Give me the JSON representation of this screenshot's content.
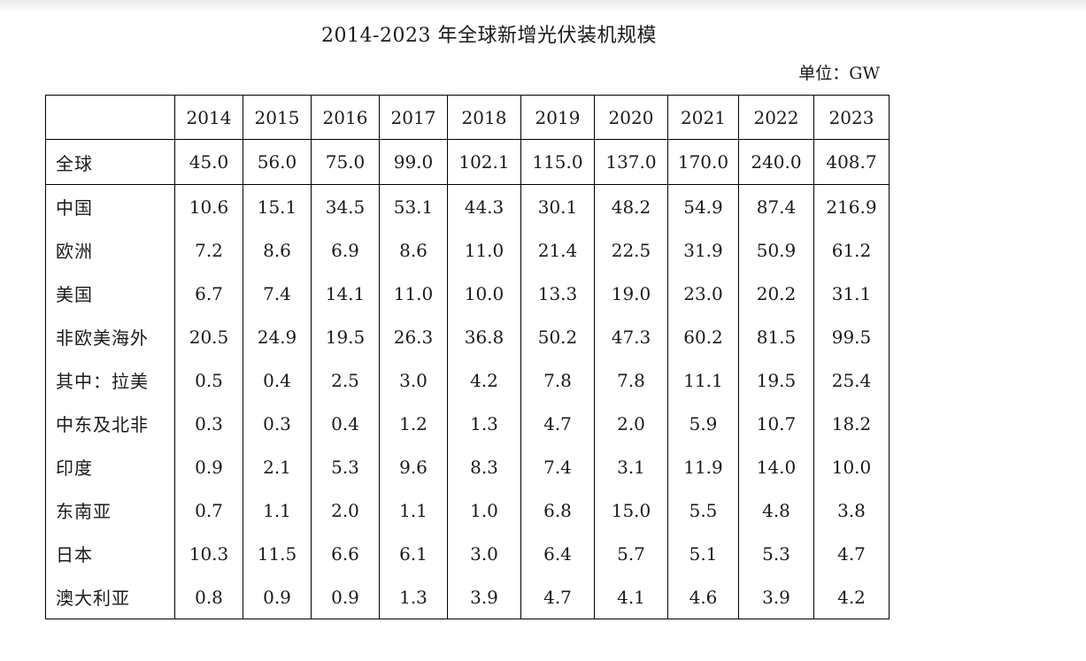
{
  "title": "2014-2023 年全球新增光伏装机规模",
  "unit": "单位：GW",
  "table": {
    "corner": "",
    "years": [
      "2014",
      "2015",
      "2016",
      "2017",
      "2018",
      "2019",
      "2020",
      "2021",
      "2022",
      "2023"
    ],
    "rows": [
      {
        "region": "全球",
        "values": [
          "45.0",
          "56.0",
          "75.0",
          "99.0",
          "102.1",
          "115.0",
          "137.0",
          "170.0",
          "240.0",
          "408.7"
        ]
      },
      {
        "region": "中国",
        "values": [
          "10.6",
          "15.1",
          "34.5",
          "53.1",
          "44.3",
          "30.1",
          "48.2",
          "54.9",
          "87.4",
          "216.9"
        ]
      },
      {
        "region": "欧洲",
        "values": [
          "7.2",
          "8.6",
          "6.9",
          "8.6",
          "11.0",
          "21.4",
          "22.5",
          "31.9",
          "50.9",
          "61.2"
        ]
      },
      {
        "region": "美国",
        "values": [
          "6.7",
          "7.4",
          "14.1",
          "11.0",
          "10.0",
          "13.3",
          "19.0",
          "23.0",
          "20.2",
          "31.1"
        ]
      },
      {
        "region": "非欧美海外",
        "values": [
          "20.5",
          "24.9",
          "19.5",
          "26.3",
          "36.8",
          "50.2",
          "47.3",
          "60.2",
          "81.5",
          "99.5"
        ]
      },
      {
        "region": "其中：拉美",
        "values": [
          "0.5",
          "0.4",
          "2.5",
          "3.0",
          "4.2",
          "7.8",
          "7.8",
          "11.1",
          "19.5",
          "25.4"
        ]
      },
      {
        "region": "中东及北非",
        "values": [
          "0.3",
          "0.3",
          "0.4",
          "1.2",
          "1.3",
          "4.7",
          "2.0",
          "5.9",
          "10.7",
          "18.2"
        ]
      },
      {
        "region": "印度",
        "values": [
          "0.9",
          "2.1",
          "5.3",
          "9.6",
          "8.3",
          "7.4",
          "3.1",
          "11.9",
          "14.0",
          "10.0"
        ]
      },
      {
        "region": "东南亚",
        "values": [
          "0.7",
          "1.1",
          "2.0",
          "1.1",
          "1.0",
          "6.8",
          "15.0",
          "5.5",
          "4.8",
          "3.8"
        ]
      },
      {
        "region": "日本",
        "values": [
          "10.3",
          "11.5",
          "6.6",
          "6.1",
          "3.0",
          "6.4",
          "5.7",
          "5.1",
          "5.3",
          "4.7"
        ]
      },
      {
        "region": "澳大利亚",
        "values": [
          "0.8",
          "0.9",
          "0.9",
          "1.3",
          "3.9",
          "4.7",
          "4.1",
          "4.6",
          "3.9",
          "4.2"
        ]
      }
    ]
  }
}
